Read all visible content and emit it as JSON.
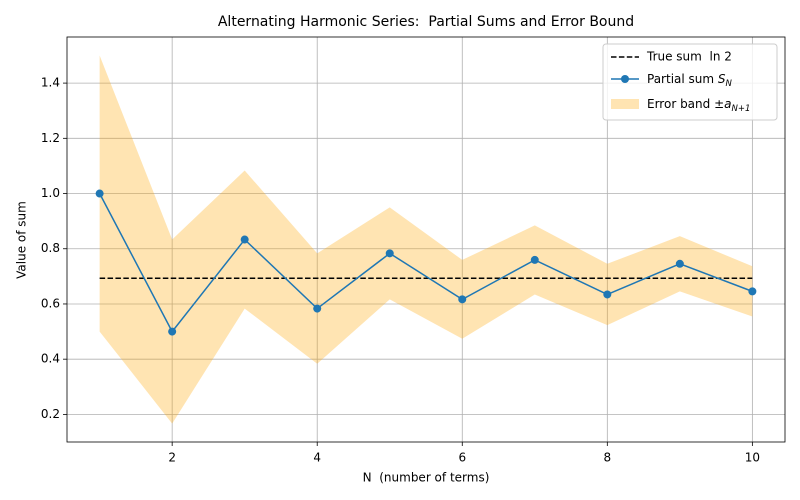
{
  "chart_data": {
    "type": "line",
    "title": "Alternating Harmonic Series:  Partial Sums and Error Bound",
    "xlabel": "N  (number of terms)",
    "ylabel": "Value of sum",
    "x": [
      1,
      2,
      3,
      4,
      5,
      6,
      7,
      8,
      9,
      10
    ],
    "xlim": [
      0.55,
      10.45
    ],
    "xticks": [
      2,
      4,
      6,
      8,
      10
    ],
    "ylim": [
      0.1,
      1.567
    ],
    "yticks": [
      0.2,
      0.4,
      0.6,
      0.8,
      {
        "value": 1.0,
        "label": "1.0"
      },
      1.2,
      1.4
    ],
    "grid": true,
    "legend": "upper right",
    "reference_line": {
      "name": "True sum  ln 2",
      "value": 0.6931,
      "color": "#000000",
      "style": "dashed"
    },
    "series": [
      {
        "name": [
          "Partial sum ",
          "S",
          "N"
        ],
        "color": "#1f77b4",
        "marker": "circle",
        "values": [
          1.0,
          0.5,
          0.8333,
          0.5833,
          0.7833,
          0.6167,
          0.7595,
          0.6345,
          0.7456,
          0.6456
        ]
      }
    ],
    "band": {
      "name": [
        "Error band ±",
        "a",
        "N+1"
      ],
      "color": "#ffa500",
      "opacity": 0.3,
      "lower": [
        0.5,
        0.1667,
        0.5833,
        0.3833,
        0.6167,
        0.4738,
        0.6345,
        0.5234,
        0.6456,
        0.5547
      ],
      "upper": [
        1.5,
        0.8333,
        1.0833,
        0.7833,
        0.95,
        0.7595,
        0.8845,
        0.7456,
        0.8456,
        0.7365
      ]
    }
  }
}
